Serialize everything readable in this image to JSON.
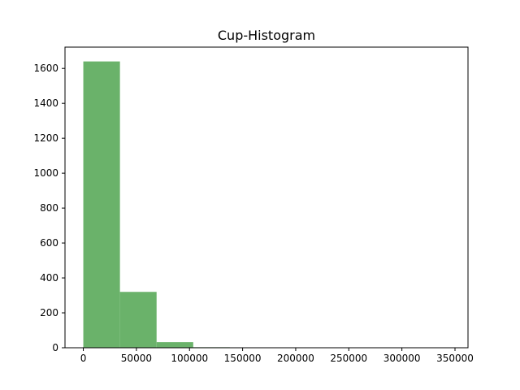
{
  "chart_data": {
    "type": "bar",
    "title": "Cup-Histogram",
    "xlabel": "",
    "ylabel": "",
    "bar_color": "#6ab26a",
    "bins": [
      {
        "start": 0,
        "end": 34500,
        "count": 1640
      },
      {
        "start": 34500,
        "end": 69000,
        "count": 320
      },
      {
        "start": 69000,
        "end": 103500,
        "count": 32
      },
      {
        "start": 103500,
        "end": 138000,
        "count": 3
      },
      {
        "start": 138000,
        "end": 172500,
        "count": 1
      },
      {
        "start": 172500,
        "end": 207000,
        "count": 0
      },
      {
        "start": 207000,
        "end": 241500,
        "count": 0
      },
      {
        "start": 241500,
        "end": 276000,
        "count": 0
      },
      {
        "start": 276000,
        "end": 310500,
        "count": 0
      },
      {
        "start": 310500,
        "end": 345000,
        "count": 1
      }
    ],
    "xlim": [
      -17250,
      362250
    ],
    "ylim": [
      0,
      1722
    ],
    "xticks": [
      0,
      50000,
      100000,
      150000,
      200000,
      250000,
      300000,
      350000
    ],
    "xtick_labels": [
      "0",
      "50000",
      "100000",
      "150000",
      "200000",
      "250000",
      "300000",
      "350000"
    ],
    "yticks": [
      0,
      200,
      400,
      600,
      800,
      1000,
      1200,
      1400,
      1600
    ],
    "ytick_labels": [
      "0",
      "200",
      "400",
      "600",
      "800",
      "1000",
      "1200",
      "1400",
      "1600"
    ],
    "grid": false,
    "legend": "none"
  }
}
